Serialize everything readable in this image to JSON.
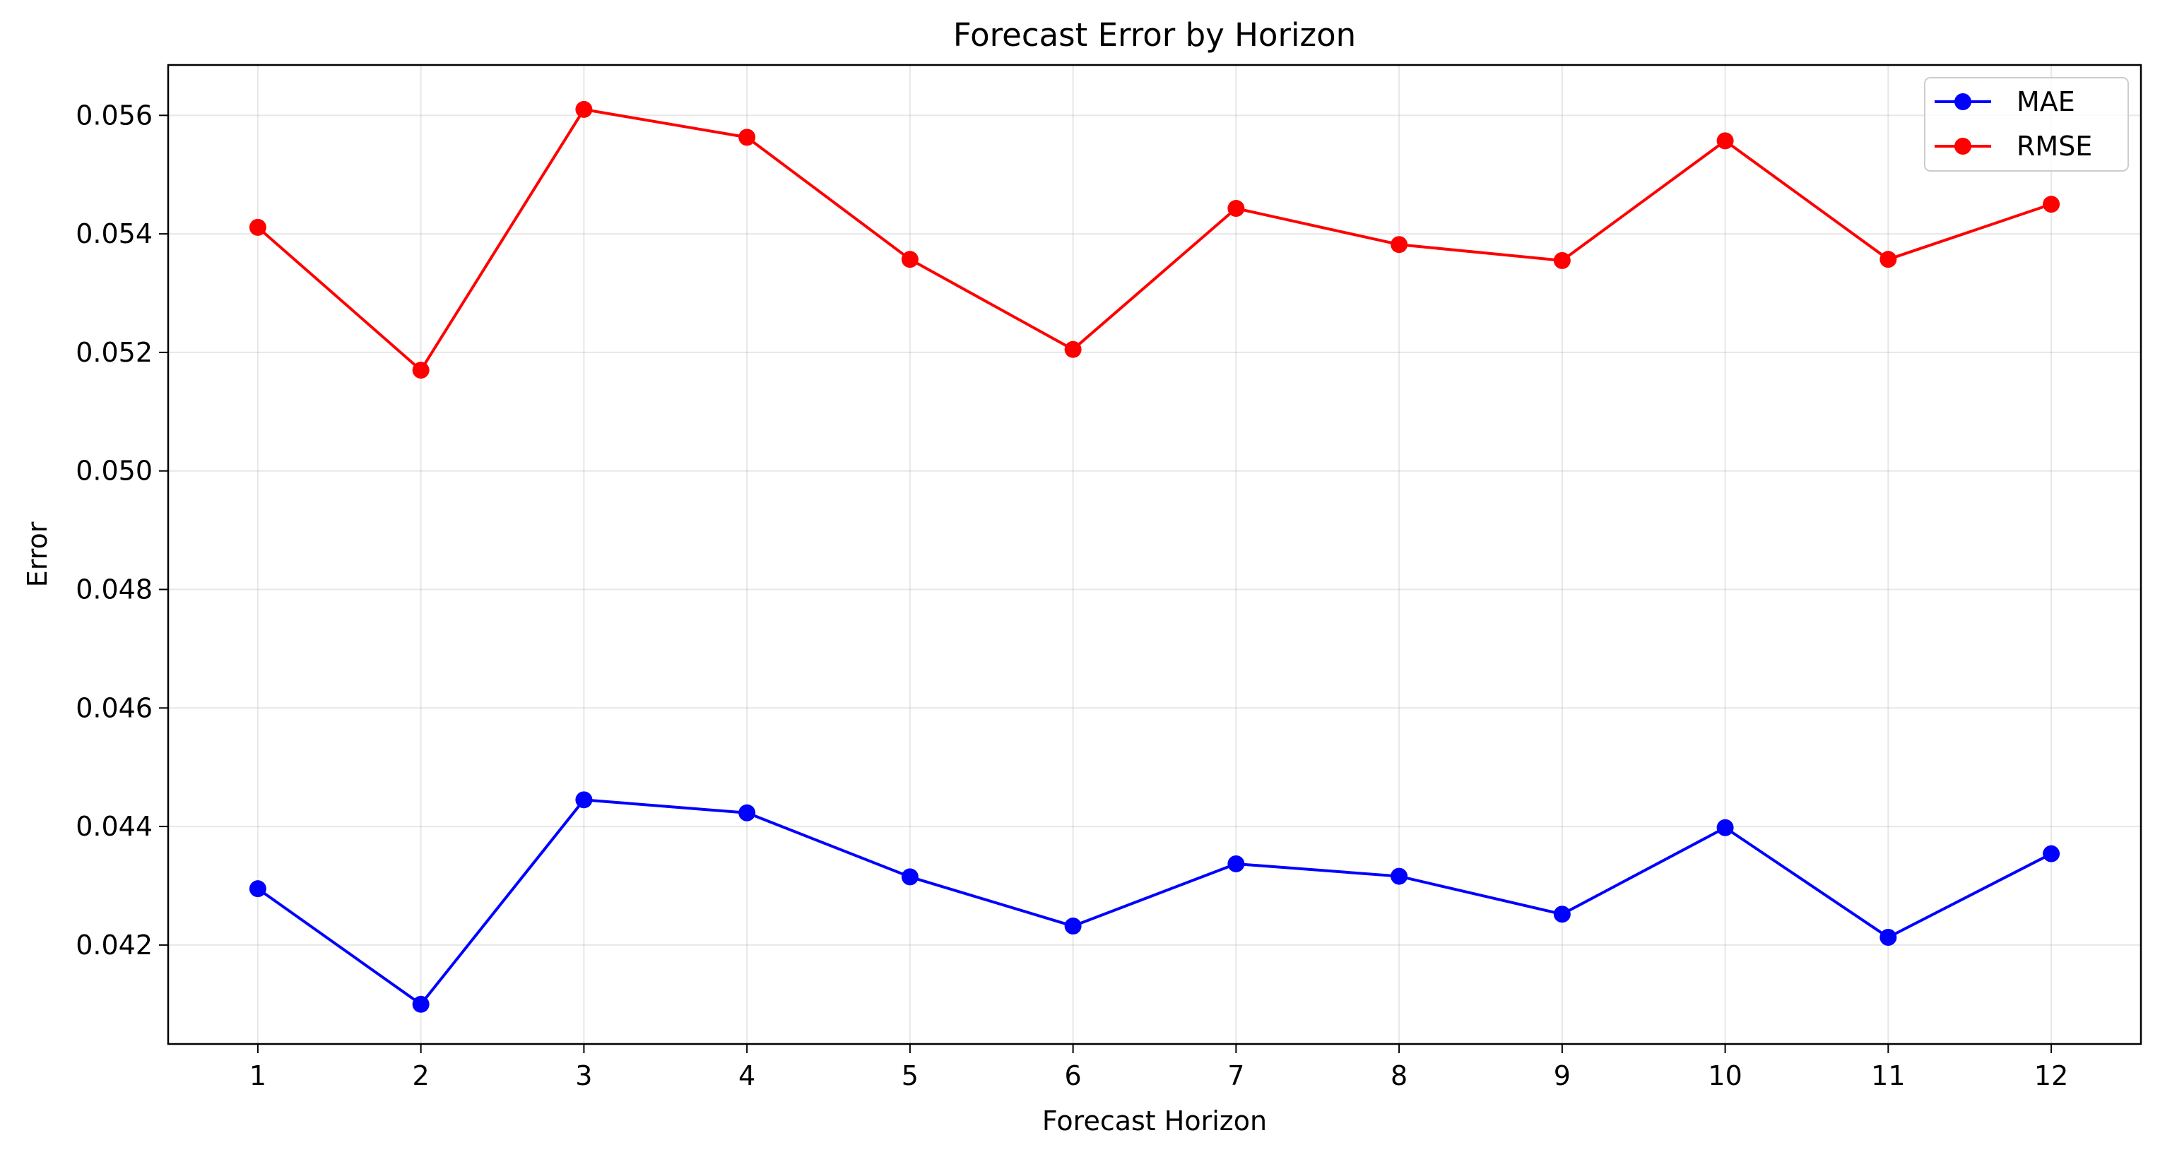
{
  "chart_data": {
    "type": "line",
    "title": "Forecast Error by Horizon",
    "xlabel": "Forecast Horizon",
    "ylabel": "Error",
    "x": [
      1,
      2,
      3,
      4,
      5,
      6,
      7,
      8,
      9,
      10,
      11,
      12
    ],
    "x_tick_labels": [
      "1",
      "2",
      "3",
      "4",
      "5",
      "6",
      "7",
      "8",
      "9",
      "10",
      "11",
      "12"
    ],
    "y_tick_values": [
      0.042,
      0.044,
      0.046,
      0.048,
      0.05,
      0.052,
      0.054,
      0.056
    ],
    "y_tick_labels": [
      "0.042",
      "0.044",
      "0.046",
      "0.048",
      "0.050",
      "0.052",
      "0.054",
      "0.056"
    ],
    "xlim": [
      0.45,
      12.55
    ],
    "ylim": [
      0.04033,
      0.05685
    ],
    "grid": true,
    "legend_position": "top-right",
    "series": [
      {
        "name": "MAE",
        "color": "#0000ff",
        "marker": "circle",
        "values": [
          0.04295,
          0.041,
          0.04445,
          0.04423,
          0.04315,
          0.04232,
          0.04337,
          0.04316,
          0.04252,
          0.04398,
          0.04213,
          0.04354
        ]
      },
      {
        "name": "RMSE",
        "color": "#ff0000",
        "marker": "circle",
        "values": [
          0.05411,
          0.0517,
          0.0561,
          0.05563,
          0.05357,
          0.05205,
          0.05443,
          0.05382,
          0.05355,
          0.05557,
          0.05357,
          0.0545
        ]
      }
    ]
  }
}
